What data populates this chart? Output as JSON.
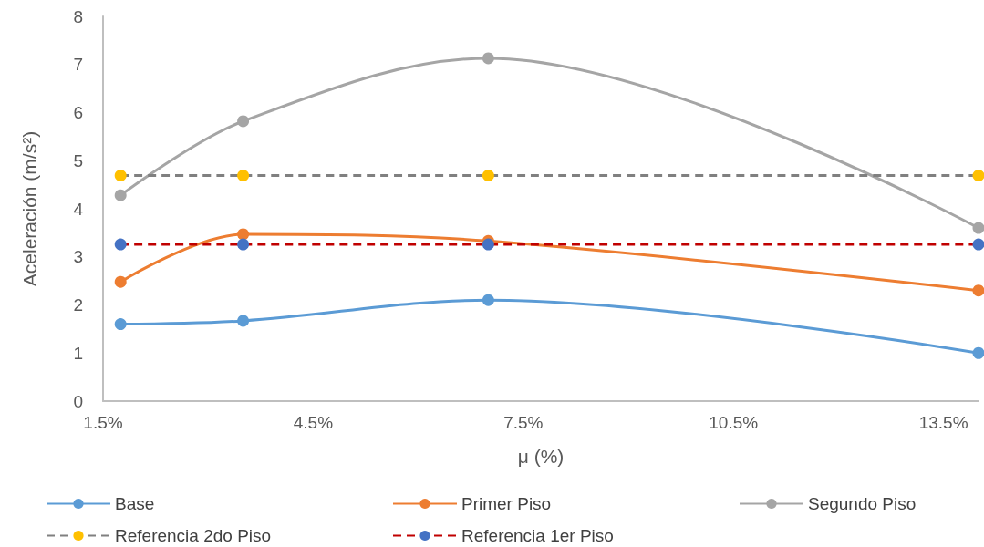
{
  "chart_data": {
    "type": "line",
    "xlabel": "μ (%)",
    "ylabel": "Aceleración (m/s²)",
    "x": [
      1.75,
      3.5,
      7,
      14
    ],
    "xlim": [
      1.5,
      14
    ],
    "xticks": [
      {
        "value": 1.5,
        "label": "1.5%"
      },
      {
        "value": 4.5,
        "label": "4.5%"
      },
      {
        "value": 7.5,
        "label": "7.5%"
      },
      {
        "value": 10.5,
        "label": "10.5%"
      },
      {
        "value": 13.5,
        "label": "13.5%"
      }
    ],
    "ylim": [
      0,
      8
    ],
    "yticks": [
      0,
      1,
      2,
      3,
      4,
      5,
      6,
      7,
      8
    ],
    "grid": false,
    "legend": "bottom",
    "marker": "circle",
    "series": [
      {
        "name": "Base",
        "color": "#5b9bd5",
        "line_style": "solid",
        "values": [
          1.6,
          1.67,
          2.1,
          1.0
        ]
      },
      {
        "name": "Primer Piso",
        "color": "#ed7d31",
        "line_style": "solid",
        "values": [
          2.48,
          3.47,
          3.33,
          2.3
        ]
      },
      {
        "name": "Segundo Piso",
        "color": "#a5a5a5",
        "line_style": "solid",
        "values": [
          4.28,
          5.82,
          7.13,
          3.6
        ]
      },
      {
        "name": "Referencia 2do Piso",
        "color": "#808080",
        "colors": [
          "#ffc000",
          "#ffc000",
          "#ffc000",
          "#ffc000"
        ],
        "line_style": "dashed",
        "values": [
          4.69,
          4.69,
          4.69,
          4.69
        ]
      },
      {
        "name": "Referencia 1er Piso",
        "color": "#c00000",
        "colors": [
          "#4472c4",
          "#4472c4",
          "#4472c4",
          "#4472c4"
        ],
        "line_style": "dashed",
        "values": [
          3.26,
          3.26,
          3.26,
          3.26
        ]
      }
    ]
  }
}
